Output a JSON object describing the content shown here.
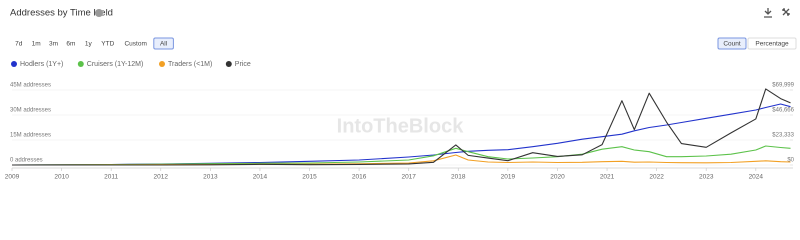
{
  "title": "Addresses by Time Held",
  "controls": {
    "ranges": [
      "7d",
      "1m",
      "3m",
      "6m",
      "1y",
      "YTD",
      "Custom",
      "All"
    ],
    "active_range": "All",
    "modes": [
      "Count",
      "Percentage"
    ],
    "active_mode": "Count"
  },
  "watermark": "IntoTheBlock",
  "chart_data": {
    "type": "line",
    "x": [
      2009,
      2010,
      2011,
      2012,
      2013,
      2014,
      2015,
      2016,
      2017,
      2017.5,
      2017.95,
      2018.2,
      2018.6,
      2019,
      2019.5,
      2020,
      2020.5,
      2020.9,
      2021.3,
      2021.55,
      2021.85,
      2022.2,
      2022.5,
      2023,
      2023.5,
      2024,
      2024.2,
      2024.5,
      2024.7
    ],
    "xlim": [
      2009,
      2024.75
    ],
    "xticks": [
      2009,
      2010,
      2011,
      2012,
      2013,
      2014,
      2015,
      2016,
      2017,
      2018,
      2019,
      2020,
      2021,
      2022,
      2023,
      2024
    ],
    "ylim": [
      0,
      45000000
    ],
    "yticks": [
      {
        "value": 0,
        "label": "0 addresses"
      },
      {
        "value": 15000000,
        "label": "15M addresses"
      },
      {
        "value": 30000000,
        "label": "30M addresses"
      },
      {
        "value": 45000000,
        "label": "45M addresses"
      }
    ],
    "y2lim": [
      0,
      69999
    ],
    "y2ticks": [
      {
        "value": 0,
        "label": "$0"
      },
      {
        "value": 23333,
        "label": "$23,333"
      },
      {
        "value": 46666,
        "label": "$46,666"
      },
      {
        "value": 69999,
        "label": "$69,999"
      }
    ],
    "grid": true,
    "series": [
      {
        "name": "Hodlers (1Y+)",
        "color": "#2233cc",
        "values": [
          0,
          100000,
          300000,
          600000,
          1000000,
          1500000,
          2200000,
          3000000,
          4800000,
          6000000,
          7500000,
          8200000,
          8800000,
          9200000,
          11000000,
          13000000,
          15500000,
          17000000,
          18500000,
          20500000,
          22500000,
          24000000,
          25500000,
          28000000,
          30500000,
          33000000,
          34500000,
          36600000,
          35000000
        ]
      },
      {
        "name": "Cruisers (1Y-12M)",
        "color": "#5cc24a",
        "values": [
          0,
          100000,
          300000,
          500000,
          800000,
          1000000,
          1200000,
          1800000,
          3000000,
          5500000,
          10000000,
          8000000,
          5000000,
          3600000,
          4200000,
          5000000,
          6500000,
          9500000,
          11000000,
          9000000,
          8000000,
          5000000,
          5000000,
          5400000,
          6500000,
          9000000,
          11400000,
          10500000,
          10000000
        ]
      },
      {
        "name": "Traders (<1M)",
        "color": "#f2a024",
        "values": [
          0,
          50000,
          100000,
          200000,
          300000,
          400000,
          500000,
          700000,
          1200000,
          2500000,
          6000000,
          3000000,
          1800000,
          1500000,
          1800000,
          1500000,
          1600000,
          2000000,
          2200000,
          1700000,
          1800000,
          1500000,
          1400000,
          1300000,
          1500000,
          2200000,
          2500000,
          2000000,
          1800000
        ]
      },
      {
        "name": "Price",
        "color": "#333333",
        "axis": "y2",
        "values": [
          0,
          0,
          0,
          10,
          200,
          600,
          300,
          500,
          1000,
          2500,
          18700,
          9000,
          6500,
          4000,
          11500,
          8000,
          9500,
          19000,
          60000,
          33000,
          67000,
          40000,
          20000,
          16500,
          30000,
          43000,
          71000,
          62000,
          58000
        ]
      }
    ]
  }
}
